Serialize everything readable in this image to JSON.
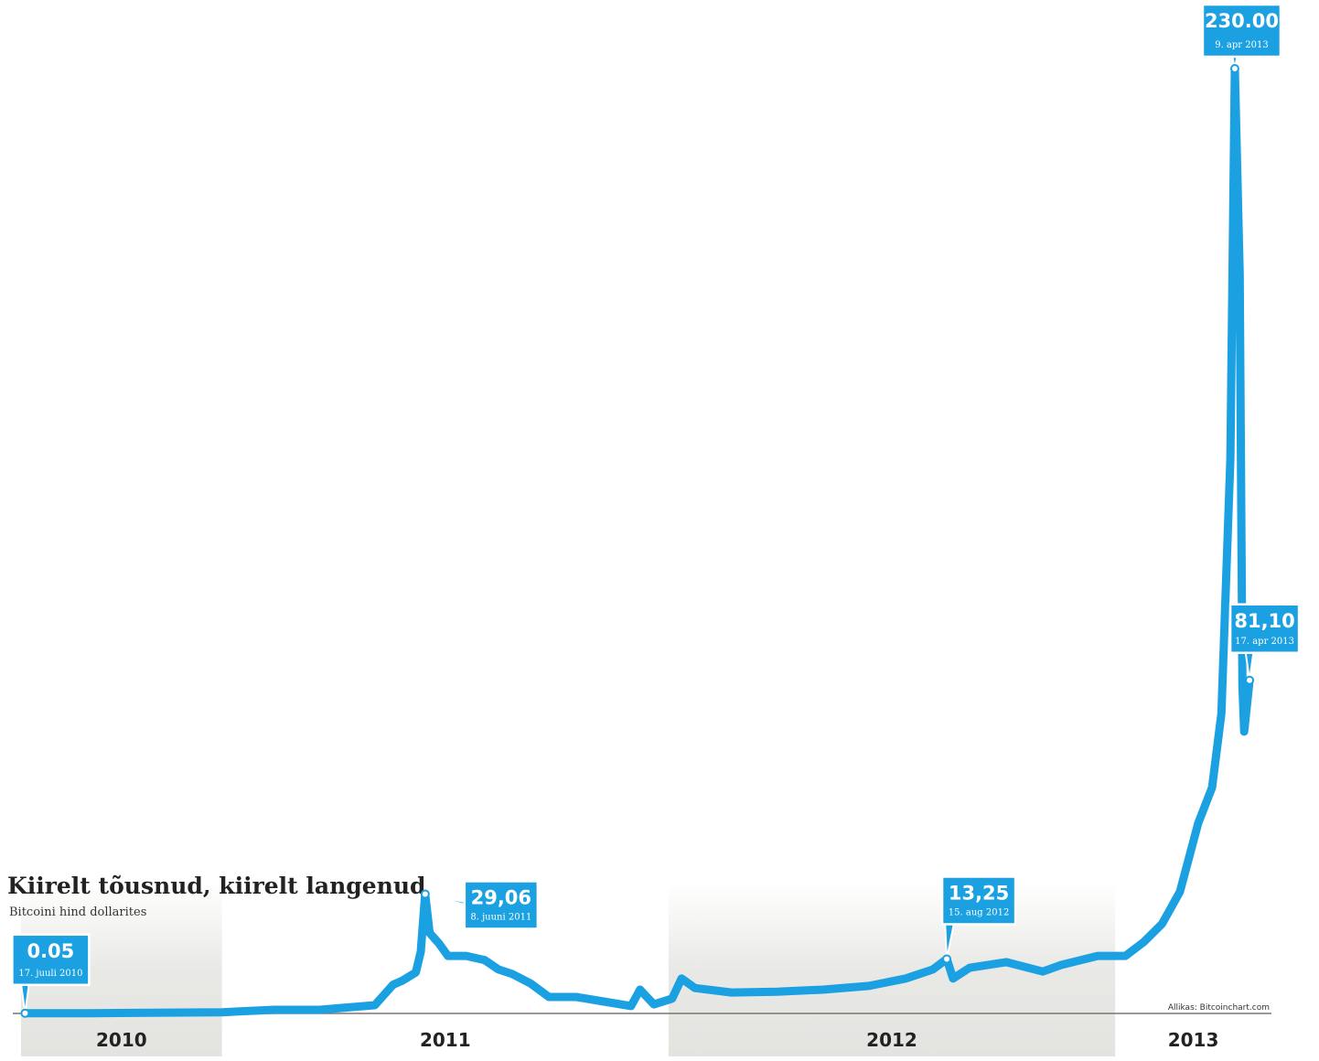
{
  "chart_data": {
    "type": "line",
    "title": "Kiirelt tõusnud, kiirelt langenud",
    "subtitle": "Bitcoini hind dollarites",
    "source": "Allikas: Bitcoinchart.com",
    "color": "#1ba1e2",
    "x": [
      2010.559,
      2010.707,
      2011.0,
      2011.117,
      2011.219,
      2011.342,
      2011.383,
      2011.404,
      2011.434,
      2011.445,
      2011.455,
      2011.465,
      2011.486,
      2011.506,
      2011.547,
      2011.588,
      2011.619,
      2011.65,
      2011.691,
      2011.732,
      2011.793,
      2011.855,
      2011.916,
      2011.936,
      2011.967,
      2012.008,
      2012.029,
      2012.059,
      2012.141,
      2012.244,
      2012.346,
      2012.449,
      2012.531,
      2012.592,
      2012.623,
      2012.637,
      2012.674,
      2012.756,
      2012.838,
      2012.879,
      2012.961,
      2013.023,
      2013.064,
      2013.105,
      2013.145,
      2013.186,
      2013.217,
      2013.238,
      2013.258,
      2013.268,
      2013.279,
      2013.285,
      2013.289,
      2013.301
    ],
    "values": [
      0.05,
      0.06,
      0.3,
      0.9,
      0.9,
      2,
      7,
      8,
      10,
      15,
      29.06,
      19.6,
      17,
      14,
      14,
      13,
      10.7,
      9.6,
      7.3,
      4,
      4,
      2.9,
      1.8,
      5.8,
      2.2,
      3.6,
      8.5,
      6.2,
      5.1,
      5.3,
      5.8,
      6.7,
      8.5,
      10.7,
      13.25,
      8.5,
      11.1,
      12.5,
      10.2,
      11.8,
      14,
      14,
      17.4,
      21.8,
      29.6,
      46.3,
      55,
      73,
      135,
      230,
      180,
      79.7,
      68.6,
      81.1
    ],
    "xlim": [
      2010.55,
      2013.35
    ],
    "ylim": [
      0,
      230
    ],
    "xticks": [
      {
        "value": 2010.5,
        "label": "2010"
      },
      {
        "value": 2011.5,
        "label": "2011"
      },
      {
        "value": 2012.5,
        "label": "2012"
      },
      {
        "value": 2013.5,
        "label": "2013"
      }
    ],
    "annotations": [
      {
        "label": "0.05",
        "date": "17. juuli 2010",
        "x": 2010.559,
        "y": 0.05
      },
      {
        "label": "29,06",
        "date": "8. juuni 2011",
        "x": 2011.455,
        "y": 29.06
      },
      {
        "label": "13,25",
        "date": "15. aug 2012",
        "x": 2012.623,
        "y": 13.25
      },
      {
        "label": "230.00",
        "date": "9. apr 2013",
        "x": 2013.268,
        "y": 230
      },
      {
        "label": "81,10",
        "date": "17. apr 2013",
        "x": 2013.301,
        "y": 81.1
      }
    ]
  }
}
